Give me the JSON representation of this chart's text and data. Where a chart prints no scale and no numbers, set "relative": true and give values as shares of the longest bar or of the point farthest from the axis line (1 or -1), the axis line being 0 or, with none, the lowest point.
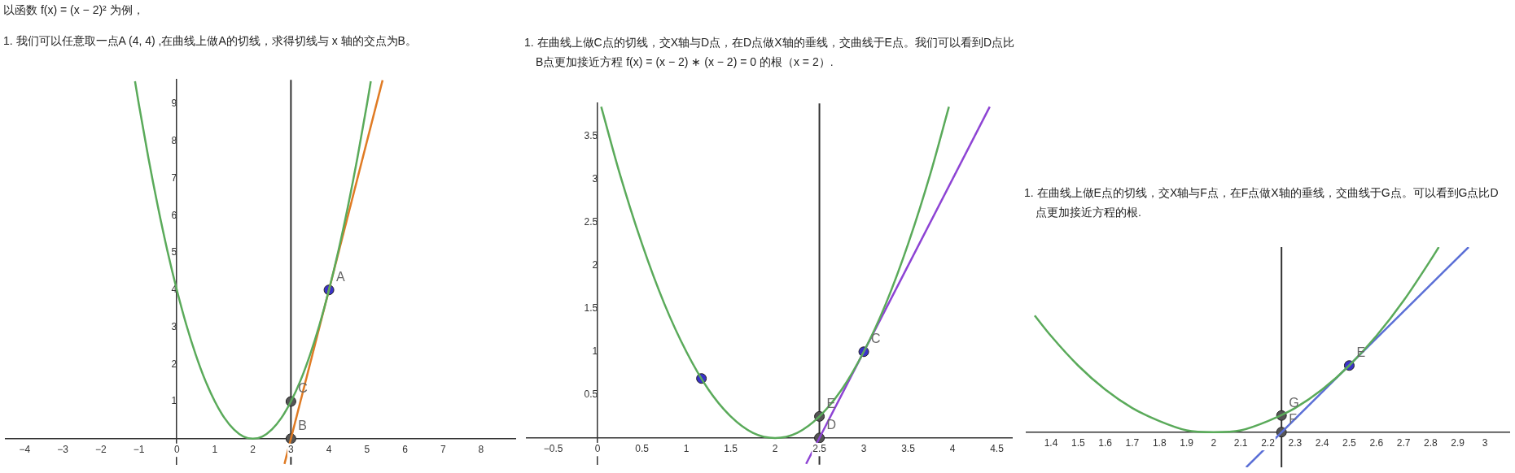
{
  "chart_data": [
    {
      "type": "line",
      "title": "以函数 f(x) = (x − 2)² 为例，",
      "subtitle": "1. 我们可以任意取一点A (4, 4) ,在曲线上做A的切线，求得切线与 x 轴的交点为B。",
      "xlim": [
        -4.5,
        8.9
      ],
      "ylim": [
        -0.7,
        9.65
      ],
      "xticks": [
        -4,
        -3,
        -2,
        -1,
        0,
        1,
        2,
        3,
        4,
        5,
        6,
        7,
        8
      ],
      "yticks": [
        1,
        2,
        3,
        4,
        5,
        6,
        7,
        8,
        9
      ],
      "grid": false,
      "legend": false,
      "series": [
        {
          "type": "line",
          "color": "#5aaa5a",
          "x": [
            -1.1,
            -1,
            -0.75,
            -0.5,
            -0.25,
            0,
            0.25,
            0.5,
            0.75,
            1,
            1.25,
            1.5,
            1.75,
            2,
            2.25,
            2.5,
            2.75,
            3,
            3.25,
            3.5,
            3.75,
            4,
            4.25,
            4.5,
            4.75,
            5,
            5.1
          ],
          "values": [
            9.61,
            9,
            7.56,
            6.25,
            5.06,
            4,
            3.06,
            2.25,
            1.56,
            1,
            0.56,
            0.25,
            0.06,
            0,
            0.06,
            0.25,
            0.56,
            1,
            1.56,
            2.25,
            3.06,
            4,
            5.06,
            6.25,
            7.56,
            9,
            9.61
          ]
        },
        {
          "type": "line",
          "color": "#e07b24",
          "x": [
            2.83,
            5.41
          ],
          "values": [
            -0.68,
            9.64
          ]
        },
        {
          "type": "scatter",
          "marker": "circle",
          "colors": [
            "#3a32c8",
            "#555555",
            "#555555"
          ],
          "x": [
            4,
            3,
            3
          ],
          "values": [
            4,
            1,
            0
          ]
        }
      ],
      "ref_lines": [
        {
          "axis": "x",
          "value": 3,
          "color": "#333333"
        }
      ],
      "annotations": [
        {
          "text": "A",
          "x": 4,
          "y": 4
        },
        {
          "text": "C",
          "x": 3,
          "y": 1
        },
        {
          "text": "B",
          "x": 3,
          "y": 0
        }
      ]
    },
    {
      "type": "line",
      "title": "1. 在曲线上做C点的切线，交X轴与D点，在D点做X轴的垂线，交曲线于E点。我们可以看到D点比B点更加接近方程 f(x) = (x − 2) ∗ (x − 2) = 0 的根（x = 2）.",
      "xlim": [
        -0.8,
        4.67
      ],
      "ylim": [
        -0.31,
        3.88
      ],
      "xticks": [
        -0.5,
        0,
        0.5,
        1,
        1.5,
        2,
        2.5,
        3,
        3.5,
        4,
        4.5
      ],
      "yticks": [
        0.5,
        1,
        1.5,
        2,
        2.5,
        3,
        3.5
      ],
      "grid": false,
      "legend": false,
      "series": [
        {
          "type": "line",
          "color": "#5aaa5a",
          "x": [
            0.04,
            0.25,
            0.5,
            0.75,
            1,
            1.25,
            1.5,
            1.75,
            2,
            2.25,
            2.5,
            2.75,
            3,
            3.25,
            3.5,
            3.75,
            3.96
          ],
          "values": [
            3.84,
            3.06,
            2.25,
            1.56,
            1,
            0.56,
            0.25,
            0.06,
            0,
            0.06,
            0.25,
            0.56,
            1,
            1.56,
            2.25,
            3.06,
            3.84
          ]
        },
        {
          "type": "line",
          "color": "#8e44d4",
          "x": [
            2.35,
            4.42
          ],
          "values": [
            -0.3,
            3.84
          ]
        },
        {
          "type": "scatter",
          "marker": "circle",
          "colors": [
            "#3a32c8",
            "#3a32c8",
            "#555555",
            "#555555"
          ],
          "x": [
            1.17,
            3,
            2.5,
            2.5
          ],
          "values": [
            0.69,
            1,
            0.25,
            0
          ]
        }
      ],
      "ref_lines": [
        {
          "axis": "x",
          "value": 2.5,
          "color": "#333333"
        }
      ],
      "annotations": [
        {
          "text": "C",
          "x": 3,
          "y": 1
        },
        {
          "text": "E",
          "x": 2.5,
          "y": 0.25
        },
        {
          "text": "D",
          "x": 2.5,
          "y": 0
        }
      ]
    },
    {
      "type": "line",
      "title": "1. 在曲线上做E点的切线，交X轴与F点，在F点做X轴的垂线，交曲线于G点。可以看到G点比D点更加接近方程的根.",
      "relative": true,
      "xlim": [
        1.31,
        3.09
      ],
      "xticks": [
        1.4,
        1.5,
        1.6,
        1.7,
        1.8,
        1.9,
        2,
        2.1,
        2.2,
        2.3,
        2.4,
        2.5,
        2.6,
        2.7,
        2.8,
        2.9,
        3
      ],
      "grid": false,
      "legend": false,
      "series": [
        {
          "type": "line",
          "color": "#5aaa5a",
          "x": [
            1.34,
            1.4,
            1.5,
            1.6,
            1.7,
            1.8,
            1.9,
            2,
            2.1,
            2.2,
            2.3,
            2.4,
            2.5,
            2.6,
            2.7,
            2.8,
            2.83
          ],
          "values": [
            0.63,
            0.52,
            0.36,
            0.23,
            0.13,
            0.06,
            0.01,
            0,
            0.01,
            0.06,
            0.13,
            0.23,
            0.36,
            0.52,
            0.71,
            0.93,
            1
          ]
        },
        {
          "type": "line",
          "color": "#5b6fd6",
          "x": [
            2.12,
            2.94
          ],
          "values": [
            -0.19,
            1
          ]
        },
        {
          "type": "scatter",
          "marker": "circle",
          "colors": [
            "#3a32c8",
            "#555555",
            "#555555"
          ],
          "x": [
            2.5,
            2.25,
            2.25
          ],
          "values": [
            0.36,
            0.09,
            0
          ]
        }
      ],
      "ref_lines": [
        {
          "axis": "x",
          "value": 2.25,
          "color": "#333333"
        }
      ],
      "annotations": [
        {
          "text": "E",
          "x": 2.5,
          "y": 0.36
        },
        {
          "text": "G",
          "x": 2.25,
          "y": 0.09
        },
        {
          "text": "F",
          "x": 2.25,
          "y": 0
        }
      ]
    }
  ]
}
